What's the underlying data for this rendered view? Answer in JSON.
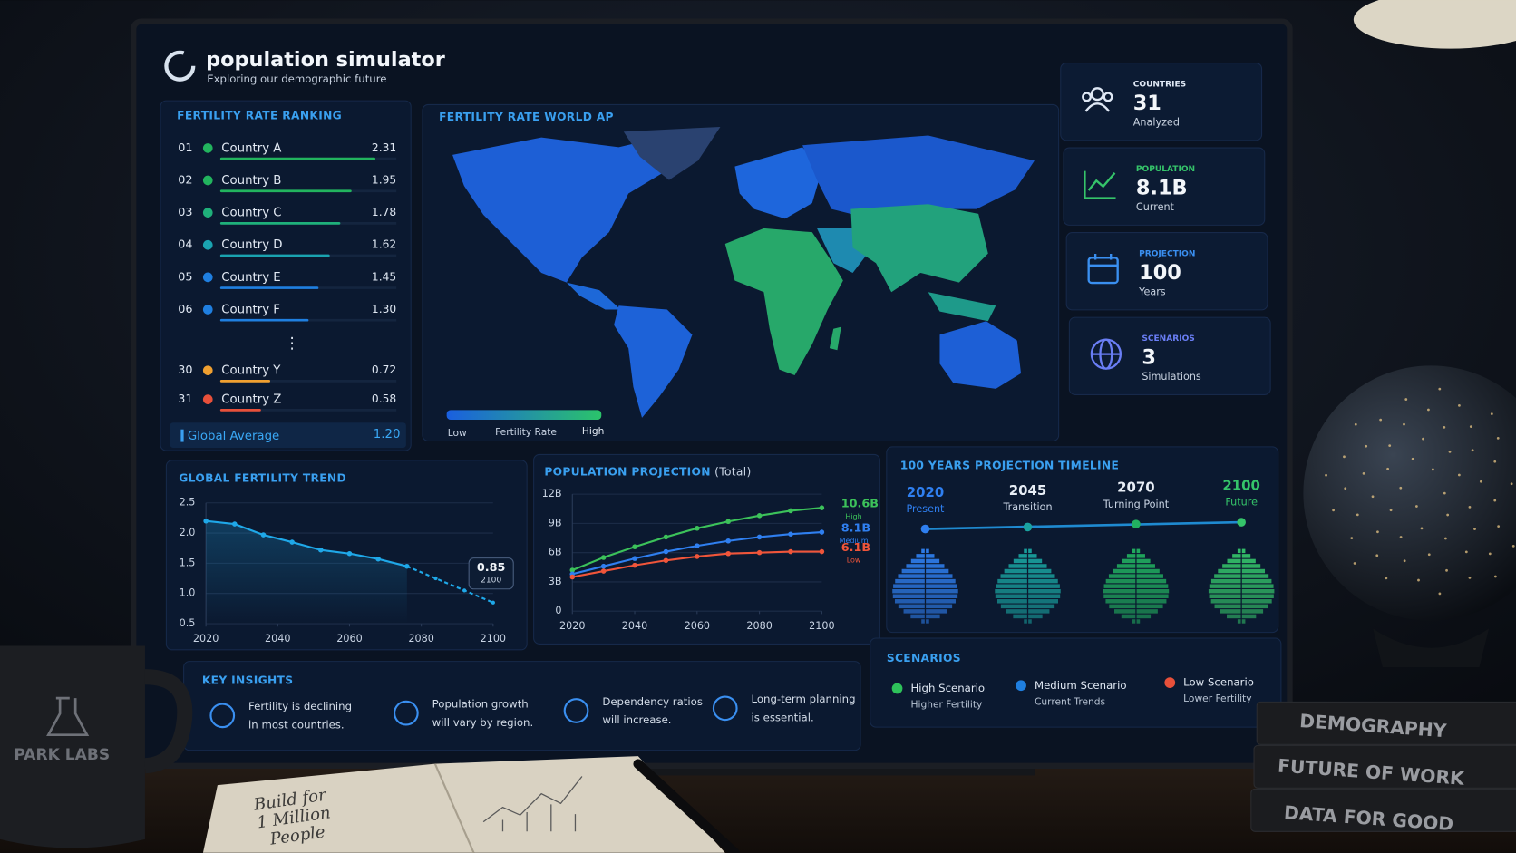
{
  "header": {
    "title": "population simulator",
    "subtitle": "Exploring our demographic future"
  },
  "ranking": {
    "title": "FERTILITY RATE RANKING",
    "ranks": [
      "01",
      "02",
      "03",
      "04",
      "05",
      "06",
      "30",
      "31"
    ],
    "countries": [
      "Country A",
      "Country B",
      "Country C",
      "Country D",
      "Country E",
      "Country F",
      "Country Y",
      "Country Z"
    ],
    "values": [
      2.31,
      1.95,
      1.78,
      1.62,
      1.45,
      1.3,
      0.72,
      0.58
    ],
    "value_labels": [
      "2.31",
      "1.95",
      "1.78",
      "1.62",
      "1.45",
      "1.30",
      "0.72",
      "0.58"
    ],
    "colors": [
      "#22b45e",
      "#22b45e",
      "#1fb07a",
      "#1aa3b0",
      "#1f7fe0",
      "#1f7fe0",
      "#f0a030",
      "#e8503a"
    ],
    "ellipsis": "⋮",
    "average_label": "Global Average",
    "average_value": "1.20"
  },
  "map": {
    "title": "FERTILITY RATE WORLD  AP",
    "legend": {
      "low": "Low",
      "title": "Fertility Rate",
      "high": "High",
      "colors": [
        "#1a5fe0",
        "#2bc46a"
      ]
    }
  },
  "stats": [
    {
      "label": "COUNTRIES",
      "value": 31,
      "sub": "Analyzed",
      "color": "#dfe8f5"
    },
    {
      "label": "POPULATION",
      "value": "8.1B",
      "sub": "Current",
      "color": "#35c46a"
    },
    {
      "label": "PROJECTION",
      "value": 100,
      "sub": "Years",
      "color": "#3a8ff0"
    },
    {
      "label": "SCENARIOS",
      "value": 3,
      "sub": "Simulations",
      "color": "#6a7ef5"
    }
  ],
  "trend": {
    "type": "line",
    "title": "GLOBAL FERTILITY TREND",
    "x": [
      2020,
      2028,
      2036,
      2044,
      2052,
      2060,
      2068,
      2076,
      2084,
      2092,
      2100
    ],
    "series": [
      {
        "color": "#1fa8e8",
        "values": [
          2.2,
          2.15,
          1.97,
          1.85,
          1.72,
          1.66,
          1.57,
          1.45,
          null,
          null,
          null
        ]
      },
      {
        "color": "#1fa8e8",
        "dashed": true,
        "values": [
          null,
          null,
          null,
          null,
          null,
          null,
          null,
          1.45,
          1.25,
          1.05,
          0.85
        ]
      }
    ],
    "xlim": [
      2020,
      2100
    ],
    "ylim": [
      0.5,
      2.5
    ],
    "xticks": [
      2020,
      2040,
      2060,
      2080,
      2100
    ],
    "yticks": [
      0.5,
      {
        "value": 1,
        "label": "1.0"
      },
      1.5,
      {
        "value": 2,
        "label": "2.0"
      },
      2.5
    ],
    "grid": true,
    "annotation": {
      "value": "0.85",
      "year": "2100"
    }
  },
  "projection": {
    "type": "line",
    "title": "POPULATION PROJECTION",
    "subtitle": "(Total)",
    "x": [
      2020,
      2030,
      2040,
      2050,
      2060,
      2070,
      2080,
      2090,
      2100
    ],
    "series": [
      {
        "name": "High",
        "color": "#3cc25a",
        "values": [
          4.2,
          5.5,
          6.6,
          7.6,
          8.5,
          9.2,
          9.8,
          10.3,
          10.6
        ],
        "value_labels": [
          null,
          null,
          null,
          null,
          null,
          null,
          null,
          null,
          "10.6B"
        ]
      },
      {
        "name": "Medium",
        "color": "#2f7ff0",
        "values": [
          3.8,
          4.6,
          5.4,
          6.1,
          6.7,
          7.2,
          7.6,
          7.9,
          8.1
        ],
        "value_labels": [
          null,
          null,
          null,
          null,
          null,
          null,
          null,
          null,
          "8.1B"
        ]
      },
      {
        "name": "Low",
        "color": "#f0553a",
        "values": [
          3.5,
          4.1,
          4.7,
          5.2,
          5.6,
          5.9,
          6.0,
          6.1,
          6.1
        ],
        "value_labels": [
          null,
          null,
          null,
          null,
          null,
          null,
          null,
          null,
          "6.1B"
        ]
      }
    ],
    "xlim": [
      2020,
      2100
    ],
    "ylim": [
      0,
      12
    ],
    "xticks": [
      2020,
      2040,
      2060,
      2080,
      2100
    ],
    "yticks": [
      0,
      {
        "value": 3,
        "label": "3B"
      },
      {
        "value": 6,
        "label": "6B"
      },
      {
        "value": 9,
        "label": "9B"
      },
      {
        "value": 12,
        "label": "12B"
      }
    ],
    "grid": true
  },
  "timeline": {
    "title": "100 YEARS PROJECTION TIMELINE",
    "years": [
      2020,
      2045,
      2070,
      2100
    ],
    "labels": [
      "Present",
      "Transition",
      "Turning Point",
      "Future"
    ]
  },
  "insights": {
    "title": "KEY INSIGHTS",
    "items": [
      [
        "Fertility is declining",
        "in most countries."
      ],
      [
        "Population growth",
        "will vary by region."
      ],
      [
        "Dependency ratios",
        "will increase."
      ],
      [
        "Long-term planning",
        "is essential."
      ]
    ]
  },
  "scenarios": {
    "title": "SCENARIOS",
    "items": [
      {
        "name": "High Scenario",
        "sub": "Higher Fertility",
        "color": "#2ec25a"
      },
      {
        "name": "Medium Scenario",
        "sub": "Current Trends",
        "color": "#1f7fe0"
      },
      {
        "name": "Low Scenario",
        "sub": "Lower Fertility",
        "color": "#e8503a"
      }
    ]
  },
  "scene": {
    "mug": "PARK LABS",
    "books": [
      "DEMOGRAPHY",
      "FUTURE OF WORK",
      "DATA FOR GOOD"
    ],
    "notebook": [
      "Build for",
      "1 Million",
      "People"
    ]
  }
}
